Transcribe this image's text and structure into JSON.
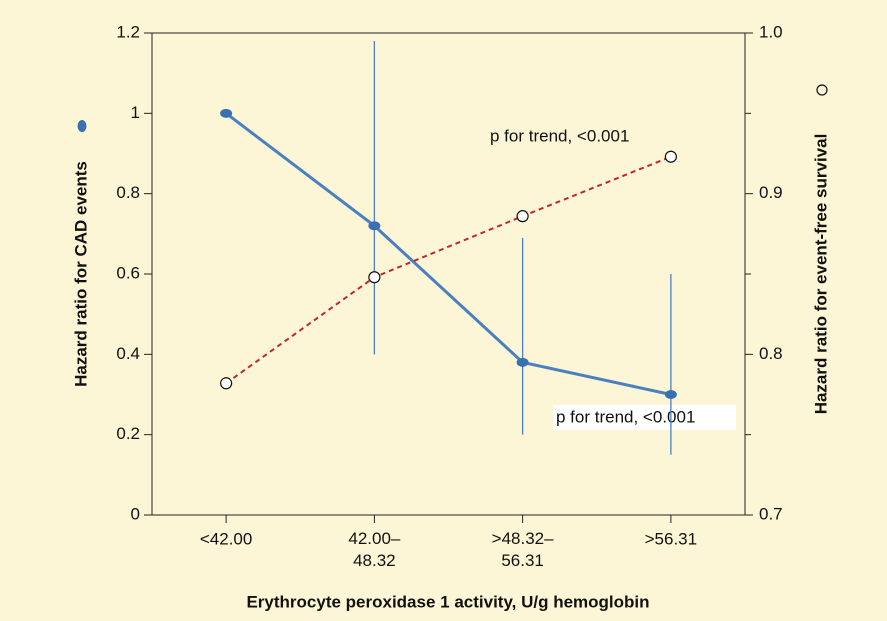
{
  "chart_data": {
    "type": "line",
    "categories": [
      "<42.00",
      "42.00–48.32",
      ">48.32–56.31",
      ">56.31"
    ],
    "x_label": "Erythrocyte peroxidase 1 activity, U/g hemoglobin",
    "y_label": "Hazard ratio for CAD events",
    "y2_label": "Hazard ratio for event-free survival",
    "ylim": [
      0,
      1.2
    ],
    "yticks": [
      0,
      0.2,
      0.4,
      0.6,
      0.8,
      1,
      1.2
    ],
    "y2lim": [
      0.7,
      1.0
    ],
    "y2ticks": [
      0.7,
      0.8,
      0.9,
      {
        "value": 1,
        "label": "1.0"
      }
    ],
    "y2minorticks": [
      0.75,
      0.85,
      0.95
    ],
    "series": [
      {
        "color": "#4a7fc0",
        "marker": "filled",
        "dash": false,
        "values": [
          1.0,
          0.72,
          0.38,
          0.3
        ],
        "lower": [
          null,
          0.4,
          0.2,
          0.15
        ],
        "upper": [
          null,
          1.18,
          0.69,
          0.6
        ]
      },
      {
        "color": "#c0272d",
        "marker": "open",
        "dash": true,
        "axis": "y2",
        "values": [
          0.782,
          0.848,
          0.886,
          0.923
        ]
      }
    ],
    "annotations": [
      "p for trend, <0.001",
      "p for trend, <0.001"
    ]
  }
}
